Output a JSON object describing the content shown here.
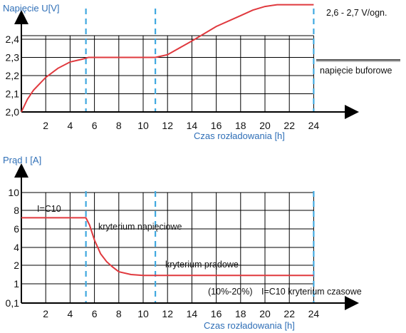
{
  "chart_data": [
    {
      "type": "line",
      "ylabel": "Napięcie U[V]",
      "xlabel": "Czas rozładowania [h]",
      "x_ticks": [
        "2",
        "4",
        "6",
        "8",
        "10",
        "12",
        "14",
        "16",
        "18",
        "20",
        "22",
        "24"
      ],
      "y_ticks": [
        "2,0",
        "2,1",
        "2,2",
        "2,3",
        "2,4"
      ],
      "grid": true,
      "vertical_markers_h": [
        5.3,
        11,
        24
      ],
      "series": [
        {
          "color": "#e0393e",
          "x": [
            0,
            0.5,
            1,
            2,
            3,
            4,
            5,
            5.5,
            6,
            8,
            10,
            11,
            12,
            14,
            16,
            18,
            19,
            20,
            21,
            22,
            24
          ],
          "y": [
            2.0,
            2.07,
            2.12,
            2.19,
            2.24,
            2.275,
            2.29,
            2.3,
            2.3,
            2.3,
            2.3,
            2.3,
            2.315,
            2.39,
            2.47,
            2.53,
            2.56,
            2.58,
            2.59,
            2.59,
            2.59
          ]
        }
      ],
      "annotations": {
        "top_right": "2,6 - 2,7 V/ogn.",
        "float_label": "napięcie buforowe"
      }
    },
    {
      "type": "line",
      "ylabel": "Prąd I [A]",
      "xlabel": "Czas rozładowania [h]",
      "x_ticks": [
        "2",
        "4",
        "6",
        "8",
        "10",
        "12",
        "14",
        "16",
        "18",
        "20",
        "22",
        "24"
      ],
      "y_ticks": [
        "0,1",
        "1",
        "2",
        "4",
        "6",
        "8",
        "10"
      ],
      "grid": true,
      "vertical_markers_h": [
        5.3,
        11,
        24
      ],
      "series": [
        {
          "color": "#e0393e",
          "x": [
            0,
            1,
            2,
            3,
            4,
            5,
            5.3,
            5.6,
            6,
            6.5,
            7,
            7.5,
            8,
            9,
            10,
            12,
            16,
            20,
            24
          ],
          "y": [
            7.2,
            7.2,
            7.2,
            7.2,
            7.2,
            7.2,
            7.2,
            6.4,
            4.8,
            3.3,
            2.4,
            1.9,
            1.65,
            1.5,
            1.45,
            1.45,
            1.45,
            1.45,
            1.45
          ]
        }
      ],
      "annotations": {
        "current_label": "I=C10",
        "voltage_criterion": "kryterium napięciowe",
        "current_criterion": "kryterium prądowe",
        "percent_label": "(10%-20%)",
        "time_criterion": "I=C10 kryterium czasowe"
      }
    }
  ],
  "colors": {
    "curve": "#e0393e",
    "marker": "#41a9e0",
    "axis_title": "#2f6fb7",
    "grid": "#000000"
  }
}
